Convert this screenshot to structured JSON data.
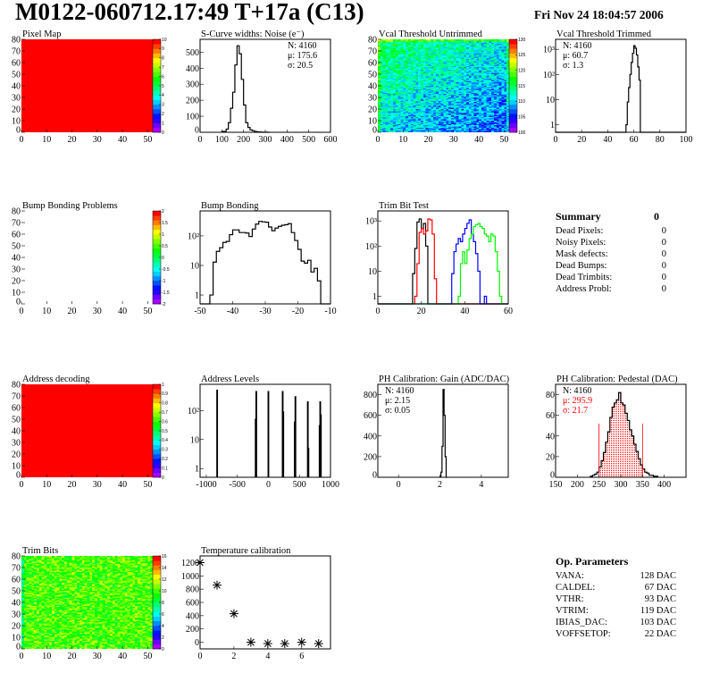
{
  "header": {
    "title": "M0122-060712.17:49 T+17a (C13)",
    "date": "Fri Nov 24 18:04:57 2006"
  },
  "summary": {
    "title": "Summary",
    "total": "0",
    "rows": [
      {
        "label": "Dead Pixels:",
        "value": "0"
      },
      {
        "label": "Noisy Pixels:",
        "value": "0"
      },
      {
        "label": "Mask defects:",
        "value": "0"
      },
      {
        "label": "Dead Bumps:",
        "value": "0"
      },
      {
        "label": "Dead Trimbits:",
        "value": "0"
      },
      {
        "label": "Address Probl:",
        "value": "0"
      }
    ]
  },
  "op_parameters": {
    "title": "Op. Parameters",
    "rows": [
      {
        "label": "VANA:",
        "value": "128 DAC"
      },
      {
        "label": "CALDEL:",
        "value": "67 DAC"
      },
      {
        "label": "VTHR:",
        "value": "93 DAC"
      },
      {
        "label": "VTRIM:",
        "value": "119 DAC"
      },
      {
        "label": "IBIAS_DAC:",
        "value": "103 DAC"
      },
      {
        "label": "VOFFSETOP:",
        "value": "22 DAC"
      }
    ]
  },
  "chart_data": [
    {
      "type": "heatmap",
      "title": "Pixel Map",
      "xlim": [
        0,
        52
      ],
      "ylim": [
        0,
        80
      ],
      "zlim": [
        0,
        10
      ],
      "pattern": "uniform",
      "z": 10,
      "xticks": [
        "0",
        "10",
        "20",
        "30",
        "40",
        "50"
      ],
      "yticks": [
        "0",
        "10",
        "20",
        "30",
        "40",
        "50",
        "60",
        "70",
        "80"
      ],
      "zticks": [
        "0",
        "1",
        "2",
        "3",
        "4",
        "5",
        "6",
        "7",
        "8",
        "9",
        "10"
      ]
    },
    {
      "type": "histogram",
      "title": "S-Curve widths: Noise (e⁻)",
      "xlim": [
        0,
        600
      ],
      "ylim": [
        0,
        580
      ],
      "log": false,
      "xticks": [
        "0",
        "100",
        "200",
        "300",
        "400",
        "500",
        "600"
      ],
      "yticks": [
        "0",
        "100",
        "200",
        "300",
        "400",
        "500"
      ],
      "stats": {
        "pos": "top-right",
        "lines": [
          {
            "text": "N: 4160"
          },
          {
            "text": "μ: 175.6"
          },
          {
            "text": "σ: 20.5"
          }
        ]
      },
      "series": [
        {
          "color": "#000000",
          "start": 100,
          "bin": 10,
          "values": [
            5,
            5,
            20,
            60,
            150,
            250,
            420,
            540,
            490,
            330,
            170,
            60,
            30,
            15,
            10,
            5,
            3,
            2,
            1,
            0,
            1,
            0
          ]
        }
      ]
    },
    {
      "type": "heatmap",
      "title": "Vcal Threshold Untrimmed",
      "xlim": [
        0,
        52
      ],
      "ylim": [
        0,
        80
      ],
      "zlim": [
        97,
        134
      ],
      "pattern": "noisy",
      "z": 110,
      "xticks": [
        "0",
        "10",
        "20",
        "30",
        "40",
        "50"
      ],
      "yticks": [
        "0",
        "10",
        "20",
        "30",
        "40",
        "50",
        "60",
        "70",
        "80"
      ],
      "zticks": [
        "100",
        "105",
        "110",
        "115",
        "120",
        "125",
        "130"
      ]
    },
    {
      "type": "histogram",
      "title": "Vcal Threshold Trimmed",
      "xlim": [
        0,
        100
      ],
      "ylim": [
        0.5,
        2500
      ],
      "log": true,
      "xticks": [
        "0",
        "20",
        "40",
        "60",
        "80",
        "100"
      ],
      "yticks": [
        "1",
        "10",
        "10²",
        "10³"
      ],
      "stats": {
        "pos": "top-left",
        "lines": [
          {
            "text": "N: 4160"
          },
          {
            "text": "μ: 60.7"
          },
          {
            "text": "σ:  1.3"
          }
        ]
      },
      "series": [
        {
          "color": "#000000",
          "start": 54,
          "bin": 1,
          "values": [
            1,
            8,
            30,
            100,
            300,
            700,
            1400,
            1100,
            600,
            200,
            60
          ]
        }
      ]
    },
    {
      "type": "heatmap",
      "title": "Bump Bonding Problems",
      "xlim": [
        0,
        52
      ],
      "ylim": [
        0,
        80
      ],
      "zlim": [
        -2,
        2
      ],
      "pattern": "empty",
      "xticks": [
        "0",
        "10",
        "20",
        "30",
        "40",
        "50"
      ],
      "yticks": [
        "0",
        "10",
        "20",
        "30",
        "40",
        "50",
        "60",
        "70",
        "80"
      ],
      "zticks": [
        "-2",
        "-1.5",
        "-1",
        "-0.5",
        "0",
        "0.5",
        "1",
        "1.5",
        "2"
      ]
    },
    {
      "type": "histogram",
      "title": "Bump Bonding",
      "xlim": [
        -50,
        -10
      ],
      "ylim": [
        0.5,
        700
      ],
      "log": true,
      "xticks": [
        "-50",
        "-40",
        "-30",
        "-20",
        "-10"
      ],
      "yticks": [
        "1",
        "10",
        "10²"
      ],
      "series": [
        {
          "color": "#000000",
          "start": -47,
          "bin": 1,
          "values": [
            1,
            13,
            30,
            40,
            60,
            65,
            110,
            160,
            160,
            130,
            130,
            125,
            95,
            170,
            250,
            310,
            300,
            290,
            200,
            150,
            185,
            210,
            230,
            240,
            260,
            130,
            70,
            35,
            14,
            12,
            15,
            6,
            8,
            3
          ]
        }
      ]
    },
    {
      "type": "histogram",
      "title": "Trim Bit Test",
      "xlim": [
        0,
        60
      ],
      "ylim": [
        0.5,
        2500
      ],
      "log": true,
      "xticks": [
        "0",
        "20",
        "40",
        "60"
      ],
      "yticks": [
        "1",
        "10",
        "10²",
        "10³"
      ],
      "series": [
        {
          "color": "#000000",
          "start": 15,
          "bin": 1,
          "values": [
            0,
            8,
            80,
            900,
            1200,
            500,
            800,
            100,
            0
          ]
        },
        {
          "color": "#ff0000",
          "start": 17,
          "bin": 1,
          "values": [
            1,
            20,
            350,
            500,
            300,
            400,
            1200,
            1100,
            300,
            5,
            0
          ]
        },
        {
          "color": "#0000ff",
          "start": 34,
          "bin": 1,
          "values": [
            8,
            60,
            120,
            200,
            150,
            300,
            500,
            800,
            1100,
            300,
            150,
            50,
            10,
            0,
            0,
            1,
            0
          ]
        },
        {
          "color": "#00ff00",
          "start": 37,
          "bin": 1,
          "values": [
            1,
            20,
            60,
            20,
            70,
            200,
            300,
            600,
            700,
            800,
            600,
            500,
            300,
            250,
            150,
            300,
            250,
            60,
            10,
            1,
            0
          ]
        }
      ]
    },
    {
      "type": "heatmap",
      "title": "Address decoding",
      "xlim": [
        0,
        52
      ],
      "ylim": [
        0,
        80
      ],
      "zlim": [
        0,
        1
      ],
      "pattern": "uniform",
      "z": 1,
      "xticks": [
        "0",
        "10",
        "20",
        "30",
        "40",
        "50"
      ],
      "yticks": [
        "0",
        "10",
        "20",
        "30",
        "40",
        "50",
        "60",
        "70",
        "80"
      ],
      "zticks": [
        "0",
        "0.1",
        "0.2",
        "0.3",
        "0.4",
        "0.5",
        "0.6",
        "0.7",
        "0.8",
        "0.9",
        "1"
      ]
    },
    {
      "type": "histogram",
      "title": "Address Levels",
      "xlim": [
        -1100,
        1000
      ],
      "ylim": [
        0.5,
        800
      ],
      "log": true,
      "xticks": [
        "-1000",
        "-500",
        "0",
        "500",
        "1000"
      ],
      "yticks": [
        "1",
        "10",
        "10²"
      ],
      "series": [
        {
          "color": "#000000",
          "bin": 10,
          "points": [
            [
              -830,
              500
            ],
            [
              -210,
              50
            ],
            [
              -200,
              450
            ],
            [
              -5,
              450
            ],
            [
              225,
              450
            ],
            [
              235,
              90
            ],
            [
              420,
              40
            ],
            [
              430,
              300
            ],
            [
              630,
              200
            ],
            [
              640,
              5
            ],
            [
              820,
              30
            ],
            [
              830,
              200
            ],
            [
              840,
              70
            ]
          ]
        }
      ]
    },
    {
      "type": "histogram",
      "title": "PH Calibration: Gain (ADC/DAC)",
      "xlim": [
        -1,
        5.3
      ],
      "ylim": [
        0,
        900
      ],
      "log": false,
      "xticks": [
        "0",
        "2",
        "4"
      ],
      "yticks": [
        "0",
        "200",
        "400",
        "600",
        "800"
      ],
      "stats": {
        "pos": "top-left",
        "lines": [
          {
            "text": "N: 4160"
          },
          {
            "text": "μ: 2.15"
          },
          {
            "text": "σ: 0.05"
          }
        ]
      },
      "series": [
        {
          "color": "#000000",
          "start": 2.0,
          "bin": 0.05,
          "values": [
            5,
            50,
            300,
            850,
            600,
            200,
            0
          ]
        }
      ]
    },
    {
      "type": "histogram",
      "title": "PH Calibration: Pedestal (DAC)",
      "xlim": [
        150,
        450
      ],
      "ylim": [
        0,
        90
      ],
      "log": false,
      "xticks": [
        "150",
        "200",
        "250",
        "300",
        "350",
        "400"
      ],
      "yticks": [
        "0",
        "20",
        "40",
        "60",
        "80"
      ],
      "stats": {
        "pos": "top-left",
        "lines": [
          {
            "text": "N: 4160"
          },
          {
            "text": "μ: 295.9",
            "color": "#ff0000"
          },
          {
            "text": "σ: 21.7",
            "color": "#ff0000"
          }
        ]
      },
      "fill": {
        "range": [
          250,
          350
        ],
        "color": "#ff0000"
      },
      "cut_lines": {
        "x": [
          250,
          350
        ],
        "y": 52,
        "color": "#ff0000"
      },
      "series": [
        {
          "color": "#000000",
          "start": 230,
          "bin": 5,
          "values": [
            1,
            2,
            3,
            5,
            10,
            16,
            24,
            34,
            44,
            58,
            68,
            72,
            75,
            82,
            72,
            70,
            62,
            55,
            46,
            40,
            32,
            25,
            18,
            12,
            8,
            5,
            4,
            2,
            2,
            1,
            1
          ]
        }
      ]
    },
    {
      "type": "heatmap",
      "title": "Trim Bits",
      "xlim": [
        0,
        52
      ],
      "ylim": [
        0,
        80
      ],
      "zlim": [
        0,
        16
      ],
      "pattern": "noisy",
      "z": 10,
      "xticks": [
        "0",
        "10",
        "20",
        "30",
        "40",
        "50"
      ],
      "yticks": [
        "0",
        "10",
        "20",
        "30",
        "40",
        "50",
        "60",
        "70",
        "80"
      ],
      "zticks": [
        "0",
        "2",
        "4",
        "6",
        "8",
        "10",
        "12",
        "14",
        "16"
      ]
    },
    {
      "type": "scatter",
      "title": "Temperature calibration",
      "xlim": [
        0,
        7.7
      ],
      "ylim": [
        -100,
        1300
      ],
      "marker": "star",
      "xticks": [
        "0",
        "2",
        "4",
        "6"
      ],
      "yticks": [
        "0",
        "200",
        "400",
        "600",
        "800",
        "1000",
        "1200"
      ],
      "points": [
        [
          0,
          1200
        ],
        [
          1,
          860
        ],
        [
          2,
          430
        ],
        [
          3,
          0
        ],
        [
          4,
          -20
        ],
        [
          5,
          -20
        ],
        [
          6,
          0
        ],
        [
          7,
          -20
        ]
      ]
    }
  ]
}
